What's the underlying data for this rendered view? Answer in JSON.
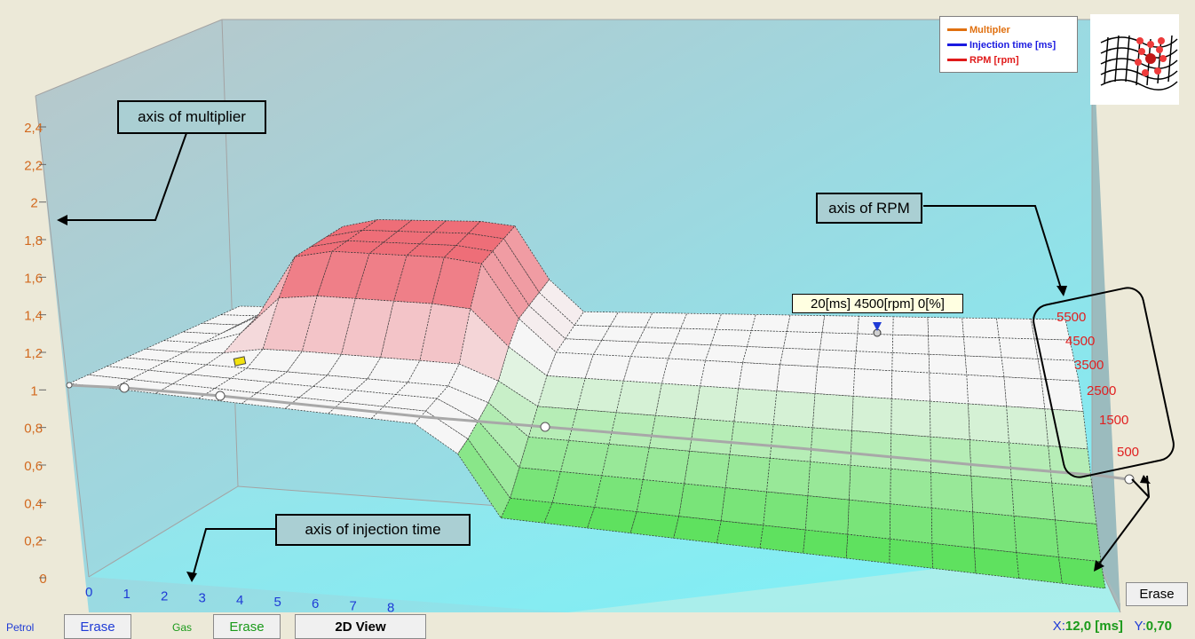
{
  "chart_data": {
    "type": "surface",
    "z_ticks": [
      "0",
      "0,2",
      "0,4",
      "0,6",
      "0,8",
      "1",
      "1,2",
      "1,4",
      "1,6",
      "1,8",
      "2",
      "2,2",
      "2,4"
    ],
    "x_ticks": [
      "0",
      "1",
      "2",
      "3",
      "4",
      "5",
      "6",
      "7",
      "8"
    ],
    "rpm_ticks": [
      "5500",
      "4500",
      "3500",
      "2500",
      "1500",
      "500"
    ],
    "colors": {
      "axis_z": "#d2691e",
      "axis_x": "#1f3bd6",
      "axis_rpm": "#e02020",
      "high": "#ee6f78",
      "low": "#5fe15f",
      "neutral": "#f6f6f6"
    }
  },
  "legend": {
    "items": [
      {
        "label": "Multipler",
        "color": "#e07010"
      },
      {
        "label": "Injection time [ms]",
        "color": "#1a1ae0"
      },
      {
        "label": "RPM [rpm]",
        "color": "#e01a1a"
      }
    ]
  },
  "callouts": {
    "multiplier": "axis of multiplier",
    "rpm": "axis of RPM",
    "injection": "axis of injection time"
  },
  "tooltip": "20[ms] 4500[rpm] 0[%]",
  "bottom": {
    "petrol_label": "Petrol",
    "petrol_erase": "Erase",
    "gas_label": "Gas",
    "gas_erase": "Erase",
    "view_button": "2D View",
    "right_erase": "Erase",
    "coord_x_label": "X:",
    "coord_x_value": "12,0 [ms]",
    "coord_y_label": "Y:",
    "coord_y_value": "0,70"
  }
}
